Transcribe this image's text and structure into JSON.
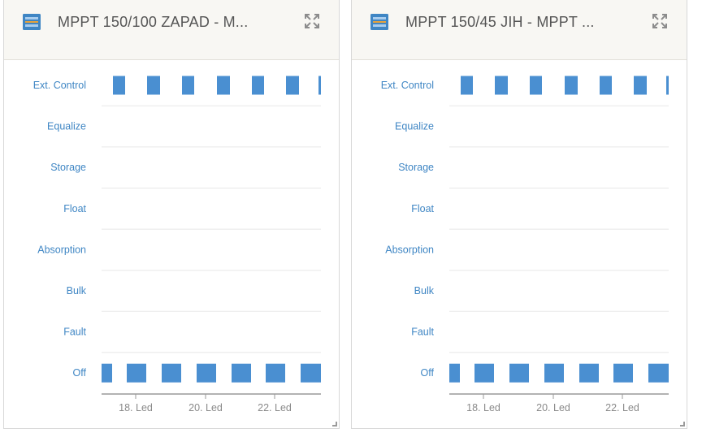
{
  "colors": {
    "accent": "#3f86c4",
    "bar": "#4a8fd1",
    "gridline": "#e8e8e8",
    "axis": "#9a9a9a",
    "header_bg": "#f8f7f3"
  },
  "widgets": [
    {
      "title": "MPPT 150/100 ZAPAD - M...",
      "device_icon": "solar-charger-icon",
      "expand_icon": "expand-icon",
      "chart_data": {
        "type": "bar",
        "states": [
          "Ext. Control",
          "Equalize",
          "Storage",
          "Float",
          "Absorption",
          "Bulk",
          "Fault",
          "Off"
        ],
        "x_ticks": [
          "18. Led",
          "20. Led",
          "22. Led"
        ],
        "series": [
          {
            "state": "Ext. Control",
            "active_segments": 7,
            "values": [
              1,
              1,
              1,
              1,
              1,
              1,
              1
            ]
          },
          {
            "state": "Off",
            "active_segments": 7,
            "values": [
              1,
              1,
              1,
              1,
              1,
              1,
              1
            ]
          }
        ]
      }
    },
    {
      "title": "MPPT 150/45 JIH - MPPT ...",
      "device_icon": "solar-charger-icon",
      "expand_icon": "expand-icon",
      "chart_data": {
        "type": "bar",
        "states": [
          "Ext. Control",
          "Equalize",
          "Storage",
          "Float",
          "Absorption",
          "Bulk",
          "Fault",
          "Off"
        ],
        "x_ticks": [
          "18. Led",
          "20. Led",
          "22. Led"
        ],
        "series": [
          {
            "state": "Ext. Control",
            "active_segments": 7,
            "values": [
              1,
              1,
              1,
              1,
              1,
              1,
              1
            ]
          },
          {
            "state": "Off",
            "active_segments": 7,
            "values": [
              1,
              1,
              1,
              1,
              1,
              1,
              1
            ]
          }
        ]
      }
    }
  ]
}
